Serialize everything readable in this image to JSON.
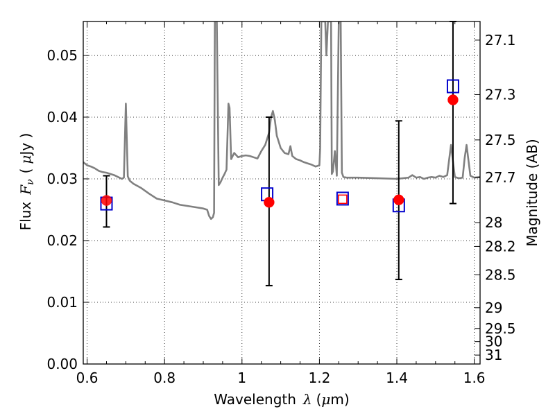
{
  "chart_data": {
    "type": "scatter",
    "x_axis": {
      "label_prefix": "Wavelength",
      "label_symbol": "λ",
      "label_unit_open": "(",
      "label_unit_mu": "μ",
      "label_unit_rest": "m)",
      "range": [
        0.59,
        1.615
      ],
      "ticks": [
        0.6,
        0.8,
        1.0,
        1.2,
        1.4,
        1.6
      ],
      "tick_labels": [
        "0.6",
        "0.8",
        "1",
        "1.2",
        "1.4",
        "1.6"
      ],
      "minor_ticks": [
        0.65,
        0.7,
        0.75,
        0.85,
        0.9,
        0.95,
        1.05,
        1.1,
        1.15,
        1.25,
        1.3,
        1.35,
        1.45,
        1.5,
        1.55
      ]
    },
    "y_axis": {
      "label_prefix": "Flux",
      "label_symbol": "F",
      "label_subscript": "ν",
      "label_unit_open": "(",
      "label_unit_mu": "μ",
      "label_unit_rest": "Jy )",
      "range": [
        0.0,
        0.0555
      ],
      "ticks": [
        0.0,
        0.01,
        0.02,
        0.03,
        0.04,
        0.05
      ],
      "tick_labels": [
        "0.00",
        "0.01",
        "0.02",
        "0.03",
        "0.04",
        "0.05"
      ]
    },
    "y2_axis": {
      "label": "Magnitude (AB)",
      "ticks": [
        27.1,
        27.3,
        27.5,
        27.7,
        28,
        28.2,
        28.5,
        29,
        29.5,
        30,
        31
      ],
      "tick_labels": [
        "27.1",
        "27.3",
        "27.5",
        "27.7",
        "28",
        "28.2",
        "28.5",
        "29",
        "29.5",
        "30",
        "31"
      ]
    },
    "grid": true,
    "series": [
      {
        "kind": "observed",
        "marker": "circle",
        "color": "#ff0000",
        "x": [
          0.65,
          1.07,
          1.405,
          1.545
        ],
        "y": [
          0.0265,
          0.0262,
          0.0266,
          0.0428
        ],
        "yerr_low": [
          0.0222,
          0.0127,
          0.0137,
          0.026
        ],
        "yerr_high": [
          0.0305,
          0.04,
          0.0394,
          0.0555
        ]
      },
      {
        "kind": "model-photometry",
        "marker": "open-square",
        "color": "#0000cc",
        "x": [
          0.65,
          1.065,
          1.26,
          1.405,
          1.545
        ],
        "y": [
          0.026,
          0.0275,
          0.0268,
          0.0257,
          0.045
        ]
      },
      {
        "kind": "upper-limit",
        "marker": "open-square-small",
        "color": "#ff0000",
        "x": [
          1.26
        ],
        "y": [
          0.0267
        ]
      }
    ],
    "sed_model": {
      "color": "#808080",
      "x": [
        0.59,
        0.6,
        0.61,
        0.62,
        0.63,
        0.64,
        0.65,
        0.66,
        0.67,
        0.68,
        0.69,
        0.695,
        0.7,
        0.705,
        0.71,
        0.72,
        0.74,
        0.76,
        0.78,
        0.8,
        0.82,
        0.84,
        0.86,
        0.88,
        0.9,
        0.91,
        0.915,
        0.92,
        0.925,
        0.928,
        0.93,
        0.935,
        0.94,
        0.945,
        0.95,
        0.955,
        0.96,
        0.965,
        0.968,
        0.972,
        0.98,
        0.99,
        1.0,
        1.01,
        1.02,
        1.03,
        1.04,
        1.05,
        1.06,
        1.07,
        1.075,
        1.08,
        1.085,
        1.09,
        1.1,
        1.11,
        1.12,
        1.125,
        1.13,
        1.14,
        1.15,
        1.16,
        1.17,
        1.18,
        1.19,
        1.2,
        1.202,
        1.205,
        1.21,
        1.215,
        1.218,
        1.222,
        1.225,
        1.23,
        1.232,
        1.235,
        1.24,
        1.245,
        1.25,
        1.255,
        1.258,
        1.262,
        1.27,
        1.3,
        1.35,
        1.4,
        1.43,
        1.44,
        1.45,
        1.46,
        1.47,
        1.48,
        1.49,
        1.5,
        1.51,
        1.52,
        1.53,
        1.54,
        1.55,
        1.56,
        1.57,
        1.575,
        1.58,
        1.59,
        1.6,
        1.615
      ],
      "y": [
        0.0327,
        0.0322,
        0.032,
        0.0317,
        0.0313,
        0.0311,
        0.031,
        0.0308,
        0.0306,
        0.0303,
        0.03,
        0.0302,
        0.0422,
        0.0304,
        0.0297,
        0.0292,
        0.0285,
        0.0276,
        0.0268,
        0.0265,
        0.0262,
        0.0258,
        0.0256,
        0.0254,
        0.0252,
        0.025,
        0.024,
        0.0235,
        0.0238,
        0.0245,
        0.0555,
        0.0555,
        0.029,
        0.0295,
        0.0302,
        0.0308,
        0.0315,
        0.0422,
        0.0415,
        0.0332,
        0.0342,
        0.0335,
        0.0337,
        0.0338,
        0.0337,
        0.0335,
        0.0333,
        0.0345,
        0.0355,
        0.0375,
        0.04,
        0.041,
        0.0395,
        0.037,
        0.035,
        0.0342,
        0.034,
        0.0353,
        0.0337,
        0.0332,
        0.033,
        0.0327,
        0.0325,
        0.0323,
        0.032,
        0.0322,
        0.035,
        0.0555,
        0.0555,
        0.0555,
        0.05,
        0.0555,
        0.0555,
        0.0555,
        0.0308,
        0.0312,
        0.0345,
        0.0305,
        0.0555,
        0.0555,
        0.031,
        0.0303,
        0.0302,
        0.0302,
        0.0301,
        0.03,
        0.0302,
        0.0306,
        0.0302,
        0.0303,
        0.03,
        0.0302,
        0.0303,
        0.0302,
        0.0305,
        0.0303,
        0.0306,
        0.0355,
        0.0303,
        0.0301,
        0.0302,
        0.0333,
        0.0355,
        0.0305,
        0.0302,
        0.0303
      ]
    }
  }
}
